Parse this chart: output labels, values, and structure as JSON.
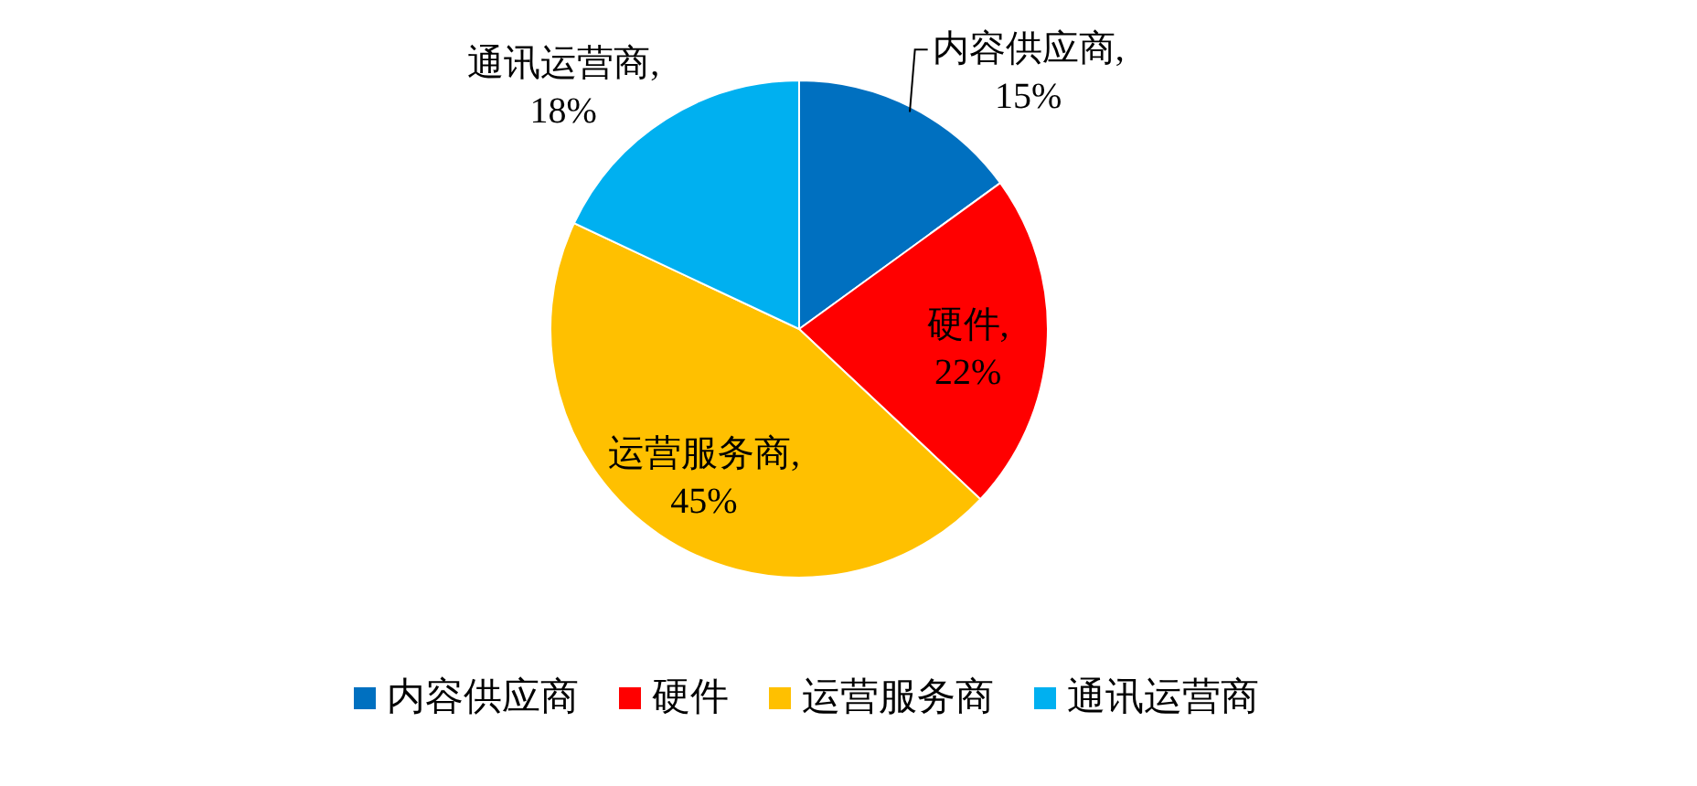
{
  "chart_data": {
    "type": "pie",
    "categories": [
      "内容供应商",
      "硬件",
      "运营服务商",
      "通讯运营商"
    ],
    "values": [
      15,
      22,
      45,
      18
    ],
    "colors": [
      "#0070c0",
      "#ff0000",
      "#ffc000",
      "#00b0f0"
    ],
    "value_labels": [
      ",\n15%",
      ",\n22%",
      ",\n45%",
      ",\n18%"
    ],
    "legend": "bottom"
  }
}
